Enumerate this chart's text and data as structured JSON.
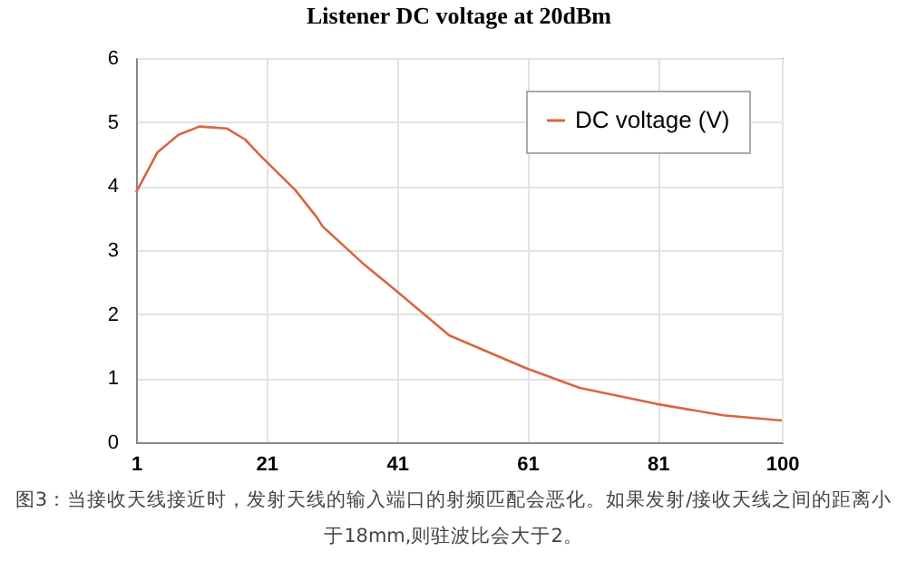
{
  "chart_data": {
    "type": "line",
    "title": "Listener DC voltage at 20dBm",
    "annotations": [
      "图3：当接收天线接近时，发射天线的输入端口的射频匹配会恶化。如果发射/接收天线之间的距离小于18mm,则驻波比会大于2。"
    ],
    "x": [
      1,
      4.3,
      7.5,
      10.7,
      14.9,
      17.7,
      20,
      25.4,
      28.8,
      29.6,
      35.7,
      40.7,
      49,
      60.7,
      69,
      80.7,
      91,
      100
    ],
    "series": [
      {
        "name": "DC voltage (V)",
        "color": "#d9663f",
        "values": [
          3.9,
          4.53,
          4.8,
          4.93,
          4.9,
          4.73,
          4.48,
          3.94,
          3.5,
          3.37,
          2.8,
          2.38,
          1.67,
          1.16,
          0.85,
          0.6,
          0.42,
          0.34
        ]
      }
    ],
    "xlim": [
      1,
      100
    ],
    "xticks": [
      1,
      21,
      41,
      61,
      81,
      100
    ],
    "ylim": [
      0,
      6
    ],
    "yticks": [
      0,
      1,
      2,
      3,
      4,
      5,
      6
    ],
    "grid": true,
    "legend": "top right",
    "marker": "none",
    "line_style": "solid"
  }
}
